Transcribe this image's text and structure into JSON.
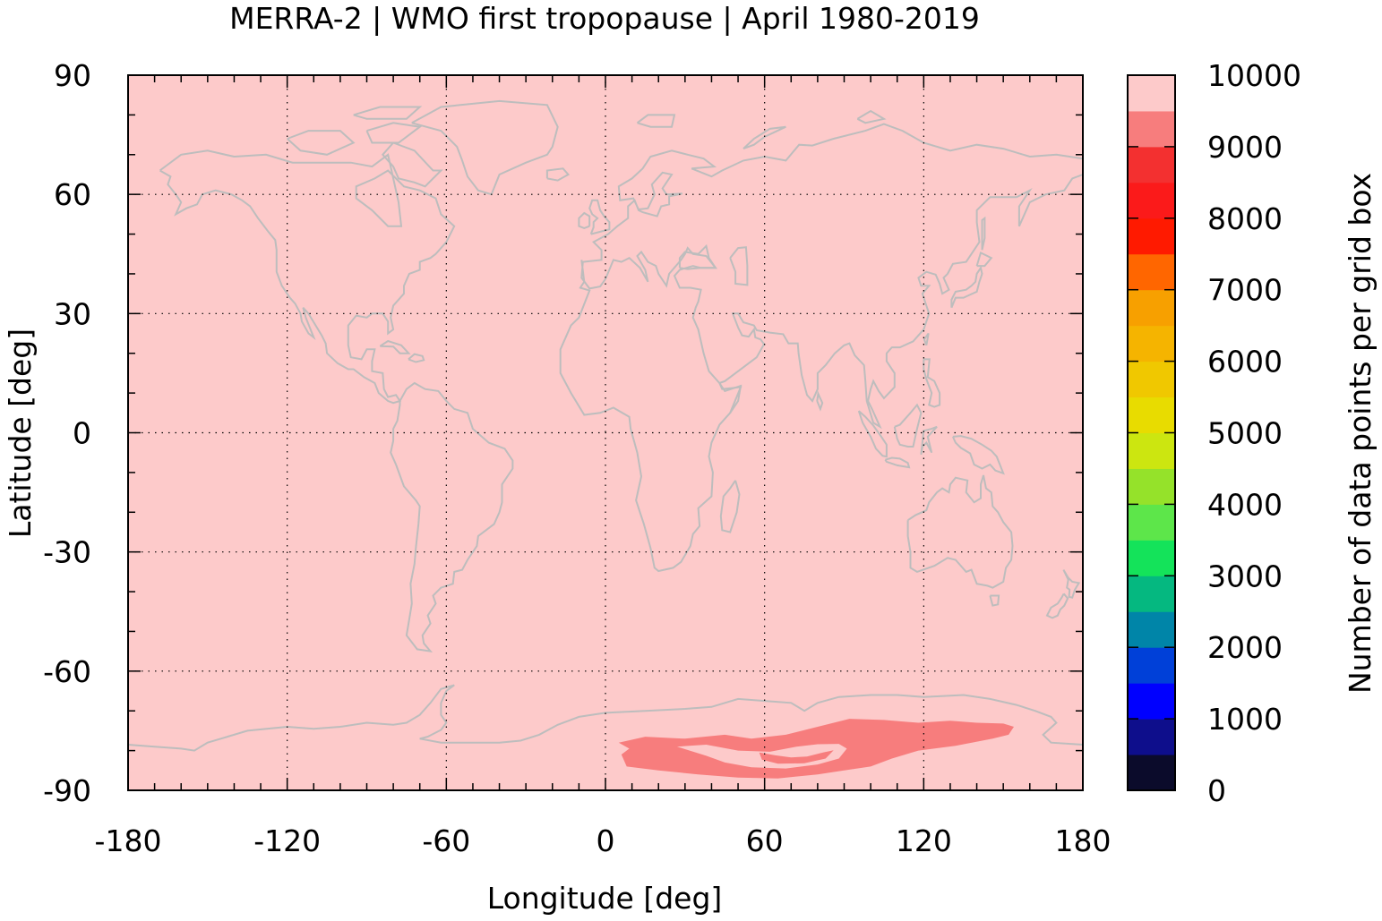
{
  "chart_data": {
    "type": "heatmap",
    "title": "MERRA-2 | WMO first tropopause | April 1980-2019",
    "xlabel": "Longitude [deg]",
    "ylabel": "Latitude [deg]",
    "xlim": [
      -180,
      180
    ],
    "ylim": [
      -90,
      90
    ],
    "xticks": [
      "-180",
      "-120",
      "-60",
      "0",
      "60",
      "120",
      "180"
    ],
    "yticks": [
      "90",
      "60",
      "30",
      "0",
      "-30",
      "-60",
      "-90"
    ],
    "grid": true,
    "background_value_bin": [
      9500,
      10000
    ],
    "background_color": "#fdcaca",
    "coastline_color": "#bdbdbd",
    "anomaly_region": {
      "value_bin": [
        9000,
        9500
      ],
      "color": "#f77d7d",
      "description_lon_range": [
        5,
        155
      ],
      "description_lat_range": [
        -88,
        -72
      ]
    },
    "colorbar": {
      "label": "Number of data points per grid box",
      "range": [
        0,
        10000
      ],
      "tick_labels": [
        "10000",
        "9000",
        "8000",
        "7000",
        "6000",
        "5000",
        "4000",
        "3000",
        "2000",
        "1000",
        "0"
      ],
      "colors": [
        "#0b0b2b",
        "#0e0e8c",
        "#0000ff",
        "#0040d8",
        "#0085a8",
        "#05b880",
        "#14e35a",
        "#5de64a",
        "#95e22a",
        "#cce610",
        "#e8dc00",
        "#f0c800",
        "#f5b400",
        "#f7a000",
        "#ff6600",
        "#ff1a00",
        "#fb1a1a",
        "#f33030",
        "#f77d7d",
        "#fdcaca"
      ]
    }
  }
}
